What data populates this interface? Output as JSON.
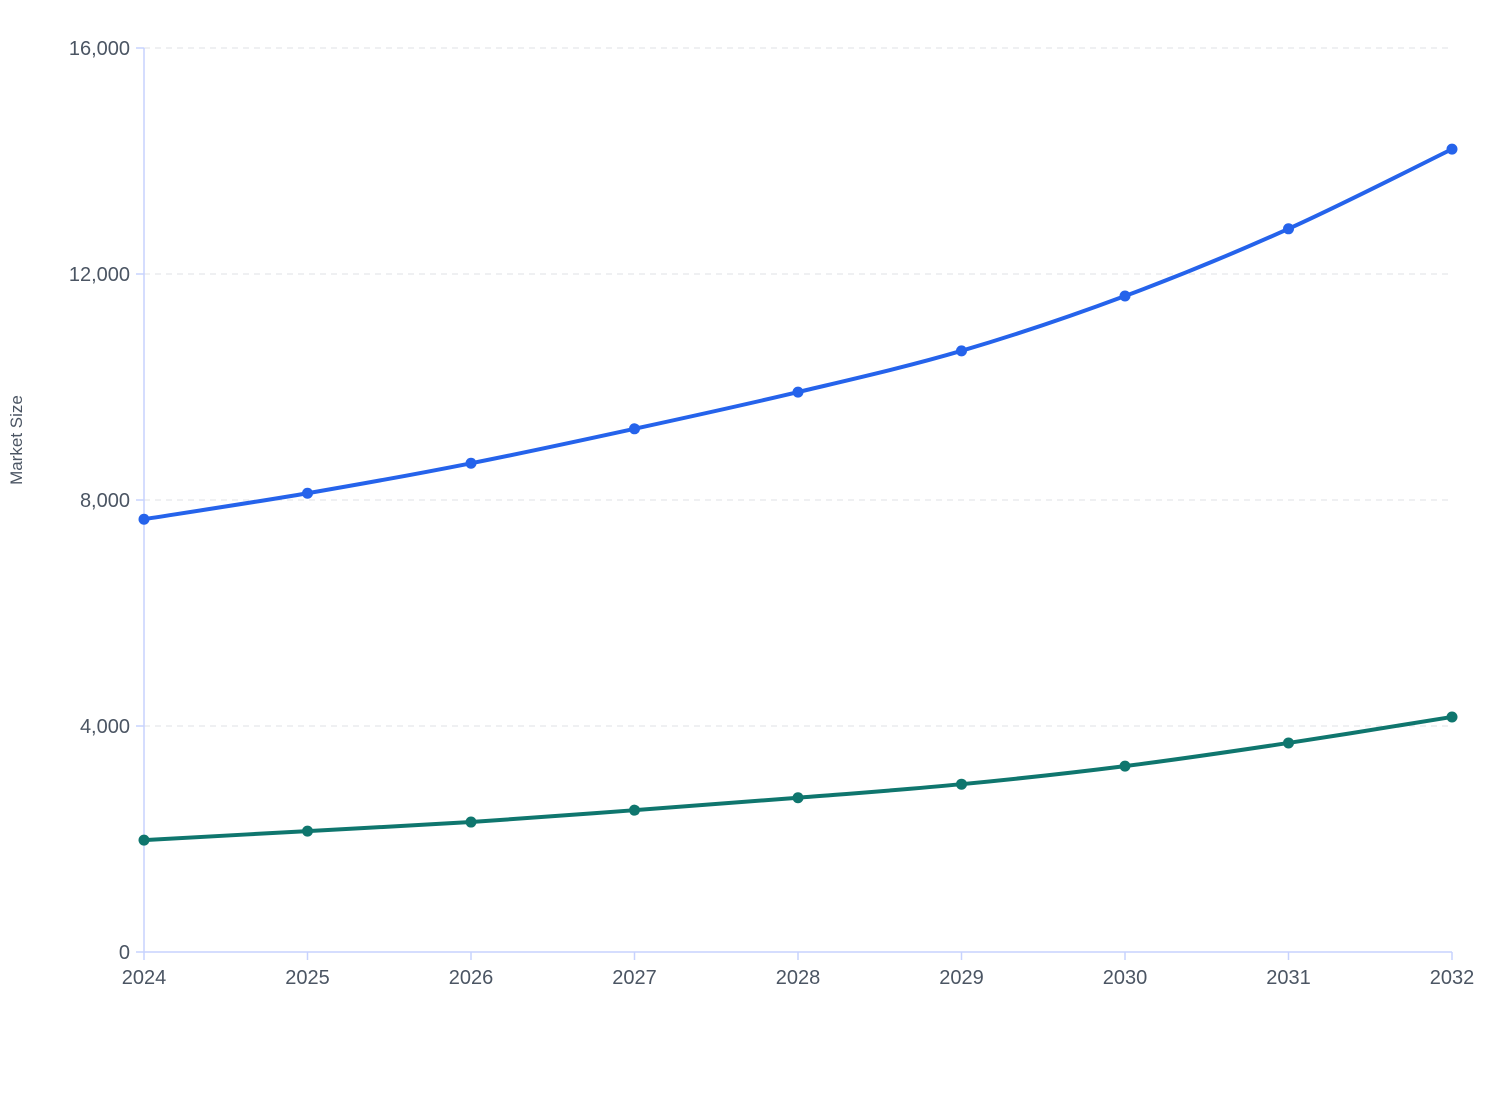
{
  "chart_data": {
    "type": "line",
    "title": "",
    "xlabel": "",
    "ylabel": "Market Size",
    "x": [
      "2024",
      "2025",
      "2026",
      "2027",
      "2028",
      "2029",
      "2030",
      "2031",
      "2032"
    ],
    "ylim": [
      0,
      16000
    ],
    "yticks": [
      0,
      4000,
      8000,
      12000,
      16000
    ],
    "ytick_labels": [
      "0",
      "4,000",
      "8,000",
      "12,000",
      "16,000"
    ],
    "grid": "horizontal-dashed",
    "legend": "none",
    "series": [
      {
        "color": "#2563eb",
        "values": [
          7660,
          8120,
          8650,
          9260,
          9910,
          10640,
          11610,
          12800,
          14210
        ]
      },
      {
        "color": "#0f766e",
        "values": [
          1980,
          2140,
          2300,
          2510,
          2730,
          2970,
          3290,
          3700,
          4160
        ]
      }
    ]
  }
}
